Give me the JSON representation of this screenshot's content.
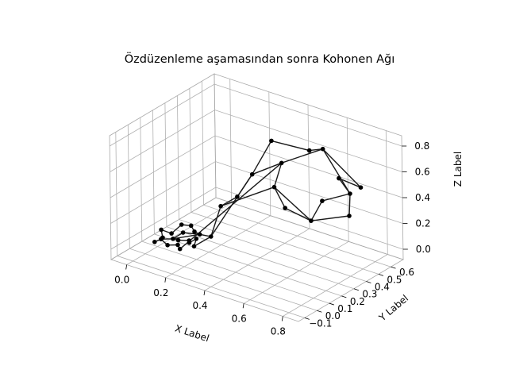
{
  "chart_data": {
    "type": "line3d",
    "title": "Özdüzenleme aşamasından sonra Kohonen Ağı",
    "xlabel": "X Label",
    "ylabel": "Y Label",
    "zlabel": "Z Label",
    "xlim": [
      -0.08,
      0.88
    ],
    "ylim": [
      -0.15,
      0.7
    ],
    "zlim": [
      -0.08,
      0.88
    ],
    "xticks": [
      0.0,
      0.2,
      0.4,
      0.6,
      0.8
    ],
    "yticks": [
      -0.1,
      0.0,
      0.1,
      0.2,
      0.3,
      0.4,
      0.5,
      0.6
    ],
    "zticks": [
      0.0,
      0.2,
      0.4,
      0.6,
      0.8
    ],
    "xtick_labels": [
      "0.0",
      "0.2",
      "0.4",
      "0.6",
      "0.8"
    ],
    "ytick_labels": [
      "−0.1",
      "0.0",
      "0.1",
      "0.2",
      "0.3",
      "0.4",
      "0.5",
      "0.6"
    ],
    "ztick_labels": [
      "0.0",
      "0.2",
      "0.4",
      "0.6",
      "0.8"
    ],
    "grid": true,
    "marker_color": "#000000",
    "line_color": "#1a1a1a",
    "nodes": [
      [
        0.05,
        0.05,
        0.03
      ],
      [
        0.08,
        0.1,
        0.02
      ],
      [
        0.12,
        0.08,
        0.04
      ],
      [
        0.15,
        0.12,
        0.03
      ],
      [
        0.1,
        0.15,
        0.05
      ],
      [
        0.06,
        0.12,
        0.04
      ],
      [
        0.04,
        0.08,
        0.02
      ],
      [
        0.09,
        0.04,
        0.01
      ],
      [
        0.13,
        0.06,
        0.02
      ],
      [
        0.17,
        0.09,
        0.04
      ],
      [
        0.2,
        0.1,
        0.08
      ],
      [
        0.18,
        0.16,
        0.07
      ],
      [
        0.14,
        0.18,
        0.06
      ],
      [
        0.11,
        0.2,
        0.08
      ],
      [
        0.08,
        0.17,
        0.09
      ],
      [
        0.03,
        0.03,
        0.01
      ],
      [
        0.02,
        0.1,
        0.06
      ],
      [
        0.16,
        0.03,
        0.02
      ],
      [
        0.22,
        0.05,
        0.06
      ],
      [
        0.25,
        0.14,
        0.1
      ],
      [
        0.2,
        0.3,
        0.22
      ],
      [
        0.26,
        0.34,
        0.3
      ],
      [
        0.3,
        0.4,
        0.46
      ],
      [
        0.35,
        0.48,
        0.7
      ],
      [
        0.42,
        0.45,
        0.58
      ],
      [
        0.5,
        0.55,
        0.66
      ],
      [
        0.55,
        0.58,
        0.68
      ],
      [
        0.65,
        0.55,
        0.52
      ],
      [
        0.7,
        0.56,
        0.42
      ],
      [
        0.72,
        0.52,
        0.28
      ],
      [
        0.6,
        0.4,
        0.25
      ],
      [
        0.48,
        0.38,
        0.3
      ],
      [
        0.4,
        0.42,
        0.4
      ],
      [
        0.73,
        0.6,
        0.46
      ],
      [
        0.62,
        0.46,
        0.38
      ]
    ],
    "path": [
      15,
      0,
      6,
      16,
      5,
      14,
      13,
      12,
      11,
      4,
      1,
      2,
      3,
      9,
      10,
      18,
      19,
      20,
      21,
      22,
      23,
      25,
      26,
      33,
      27,
      28,
      29,
      30,
      31,
      32,
      24,
      17,
      8,
      7,
      0,
      1,
      11,
      19,
      22,
      24,
      26,
      28,
      34,
      30,
      32,
      20
    ]
  }
}
